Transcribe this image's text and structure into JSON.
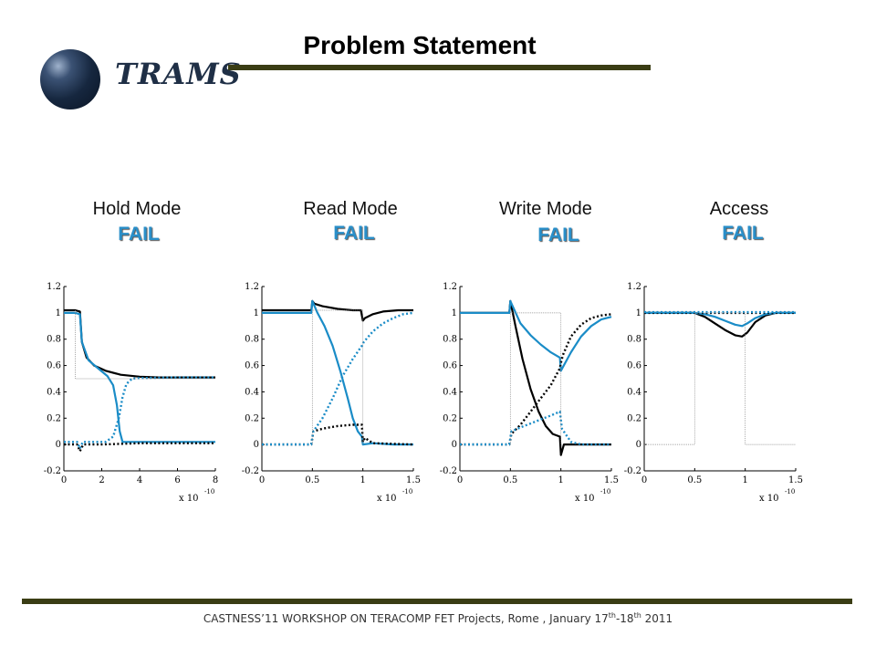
{
  "header": {
    "logo_text": "TRAMS",
    "title": "Problem Statement"
  },
  "modes": [
    {
      "label": "Hold Mode",
      "status": "FAIL"
    },
    {
      "label": "Read Mode",
      "status": "FAIL"
    },
    {
      "label": "Write Mode",
      "status": "FAIL"
    },
    {
      "label": "Access",
      "status": "FAIL"
    }
  ],
  "footer": {
    "text_main": "CASTNESS’11 WORKSHOP ON TERACOMP FET Projects, Rome , January 17",
    "sup1": "th",
    "text_mid": "-18",
    "sup2": "th",
    "text_end": " 2011"
  },
  "colors": {
    "black_series": "#000000",
    "blue_series": "#1a8cc7",
    "accent_line": "#3a3d14"
  },
  "chart_data": [
    {
      "type": "line",
      "title": "Hold Mode",
      "xlim": [
        0,
        8
      ],
      "ylim": [
        -0.2,
        1.2
      ],
      "xticks": [
        "0",
        "2",
        "4",
        "6",
        "8"
      ],
      "yticks": [
        "-0.2",
        "0",
        "0.2",
        "0.4",
        "0.6",
        "0.8",
        "1",
        "1.2"
      ],
      "x_multiplier": "x 10",
      "x_multiplier_exp": "-10",
      "series": [
        {
          "color": "#000000",
          "style": "solid",
          "x": [
            0,
            0.6,
            0.85,
            0.95,
            1.2,
            1.6,
            2.2,
            3,
            4,
            5,
            6,
            7,
            8
          ],
          "y": [
            1.02,
            1.02,
            1.01,
            0.78,
            0.66,
            0.6,
            0.56,
            0.53,
            0.515,
            0.51,
            0.51,
            0.51,
            0.51
          ]
        },
        {
          "color": "#1a8cc7",
          "style": "solid",
          "x": [
            0,
            0.6,
            0.85,
            0.95,
            1.3,
            1.8,
            2.3,
            2.6,
            2.8,
            2.95,
            3.1,
            4,
            5,
            6,
            8
          ],
          "y": [
            1.0,
            1.0,
            0.99,
            0.78,
            0.64,
            0.58,
            0.52,
            0.45,
            0.3,
            0.1,
            0.02,
            0.02,
            0.02,
            0.02,
            0.02
          ]
        },
        {
          "color": "#000000",
          "style": "dotted",
          "x": [
            0,
            0.7,
            0.85,
            0.95,
            1.05,
            2,
            4,
            6,
            8
          ],
          "y": [
            0.0,
            0.0,
            -0.05,
            -0.02,
            0.0,
            0.0,
            0.01,
            0.01,
            0.01
          ]
        },
        {
          "color": "#1a8cc7",
          "style": "dotted",
          "x": [
            0,
            0.7,
            0.85,
            1.0,
            2.2,
            2.6,
            2.9,
            3.1,
            3.3,
            3.6,
            4,
            6,
            8
          ],
          "y": [
            0.02,
            0.02,
            -0.03,
            0.02,
            0.02,
            0.06,
            0.2,
            0.36,
            0.46,
            0.5,
            0.505,
            0.51,
            0.51
          ]
        },
        {
          "color": "#888888",
          "style": "thin",
          "x": [
            0.6,
            0.6,
            8
          ],
          "y": [
            1.02,
            0.5,
            0.5
          ]
        }
      ]
    },
    {
      "type": "line",
      "title": "Read Mode",
      "xlim": [
        0,
        1.5
      ],
      "ylim": [
        -0.2,
        1.2
      ],
      "xticks": [
        "0",
        "0.5",
        "1",
        "1.5"
      ],
      "yticks": [
        "-0.2",
        "0",
        "0.2",
        "0.4",
        "0.6",
        "0.8",
        "1",
        "1.2"
      ],
      "x_multiplier": "x 10",
      "x_multiplier_exp": "-10",
      "series": [
        {
          "color": "#000000",
          "style": "solid",
          "x": [
            0,
            0.49,
            0.5,
            0.52,
            0.6,
            0.75,
            0.9,
            0.98,
            1.0,
            1.02,
            1.1,
            1.2,
            1.35,
            1.5
          ],
          "y": [
            1.02,
            1.02,
            1.09,
            1.07,
            1.05,
            1.03,
            1.02,
            1.02,
            0.94,
            0.96,
            0.99,
            1.01,
            1.02,
            1.02
          ]
        },
        {
          "color": "#1a8cc7",
          "style": "solid",
          "x": [
            0,
            0.49,
            0.5,
            0.55,
            0.62,
            0.7,
            0.78,
            0.85,
            0.9,
            0.95,
            0.99,
            1.0,
            1.1,
            1.3,
            1.5
          ],
          "y": [
            1.0,
            1.0,
            1.09,
            1.0,
            0.9,
            0.75,
            0.55,
            0.35,
            0.2,
            0.1,
            0.06,
            0.0,
            0.01,
            0.0,
            0.0
          ]
        },
        {
          "color": "#000000",
          "style": "dotted",
          "x": [
            0,
            0.49,
            0.51,
            0.6,
            0.75,
            0.9,
            0.99,
            1.0,
            1.02,
            1.1,
            1.5
          ],
          "y": [
            0.0,
            0.0,
            0.1,
            0.12,
            0.14,
            0.15,
            0.15,
            0.02,
            0.05,
            0.01,
            0.0
          ]
        },
        {
          "color": "#1a8cc7",
          "style": "dotted",
          "x": [
            0,
            0.49,
            0.51,
            0.6,
            0.7,
            0.8,
            0.9,
            0.99,
            1.01,
            1.1,
            1.2,
            1.3,
            1.4,
            1.5
          ],
          "y": [
            0.0,
            0.0,
            0.1,
            0.2,
            0.35,
            0.52,
            0.65,
            0.75,
            0.78,
            0.86,
            0.92,
            0.96,
            0.99,
            1.0
          ]
        },
        {
          "color": "#888888",
          "style": "thin",
          "x": [
            0.5,
            0.5,
            1.0,
            1.0
          ],
          "y": [
            0.0,
            1.02,
            1.02,
            0.0
          ]
        }
      ]
    },
    {
      "type": "line",
      "title": "Write Mode",
      "xlim": [
        0,
        1.5
      ],
      "ylim": [
        -0.2,
        1.2
      ],
      "xticks": [
        "0",
        "0.5",
        "1",
        "1.5"
      ],
      "yticks": [
        "-0.2",
        "0",
        "0.2",
        "0.4",
        "0.6",
        "0.8",
        "1",
        "1.2"
      ],
      "x_multiplier": "x 10",
      "x_multiplier_exp": "-10",
      "series": [
        {
          "color": "#000000",
          "style": "solid",
          "x": [
            0,
            0.49,
            0.5,
            0.55,
            0.62,
            0.7,
            0.78,
            0.85,
            0.92,
            0.99,
            1.0,
            1.03,
            1.1,
            1.3,
            1.5
          ],
          "y": [
            1.0,
            1.0,
            1.09,
            0.9,
            0.65,
            0.42,
            0.25,
            0.14,
            0.08,
            0.06,
            -0.08,
            0.0,
            0.0,
            0.0,
            0.0
          ]
        },
        {
          "color": "#1a8cc7",
          "style": "solid",
          "x": [
            0,
            0.49,
            0.5,
            0.6,
            0.7,
            0.8,
            0.9,
            0.99,
            1.0,
            1.1,
            1.2,
            1.3,
            1.4,
            1.5
          ],
          "y": [
            1.0,
            1.0,
            1.09,
            0.92,
            0.83,
            0.76,
            0.7,
            0.66,
            0.56,
            0.7,
            0.82,
            0.9,
            0.95,
            0.97
          ]
        },
        {
          "color": "#000000",
          "style": "dotted",
          "x": [
            0,
            0.49,
            0.51,
            0.6,
            0.7,
            0.8,
            0.9,
            0.99,
            1.0,
            1.02,
            1.1,
            1.2,
            1.3,
            1.4,
            1.5
          ],
          "y": [
            0.0,
            0.0,
            0.08,
            0.15,
            0.25,
            0.35,
            0.45,
            0.58,
            0.62,
            0.68,
            0.82,
            0.91,
            0.96,
            0.98,
            0.99
          ]
        },
        {
          "color": "#1a8cc7",
          "style": "dotted",
          "x": [
            0,
            0.49,
            0.51,
            0.6,
            0.7,
            0.8,
            0.9,
            0.99,
            1.01,
            1.1,
            1.2,
            1.5
          ],
          "y": [
            0.0,
            0.0,
            0.1,
            0.13,
            0.16,
            0.19,
            0.22,
            0.25,
            0.12,
            0.02,
            0.0,
            0.0
          ]
        },
        {
          "color": "#888888",
          "style": "thin",
          "x": [
            0.5,
            0.5,
            1.0,
            1.0
          ],
          "y": [
            0.0,
            1.0,
            1.0,
            0.0
          ]
        }
      ]
    },
    {
      "type": "line",
      "title": "Access",
      "xlim": [
        0,
        1.5
      ],
      "ylim": [
        -0.2,
        1.2
      ],
      "xticks": [
        "0",
        "0.5",
        "1",
        "1.5"
      ],
      "yticks": [
        "-0.2",
        "0",
        "0.2",
        "0.4",
        "0.6",
        "0.8",
        "1",
        "1.2"
      ],
      "x_multiplier": "x 10",
      "x_multiplier_exp": "-10",
      "series": [
        {
          "color": "#000000",
          "style": "solid",
          "x": [
            0,
            0.5,
            0.6,
            0.7,
            0.8,
            0.9,
            0.97,
            1.02,
            1.1,
            1.2,
            1.3,
            1.5
          ],
          "y": [
            1.0,
            1.0,
            0.97,
            0.92,
            0.87,
            0.83,
            0.82,
            0.85,
            0.93,
            0.98,
            1.0,
            1.0
          ]
        },
        {
          "color": "#1a8cc7",
          "style": "solid",
          "x": [
            0,
            0.5,
            0.6,
            0.7,
            0.8,
            0.9,
            0.97,
            1.02,
            1.1,
            1.2,
            1.3,
            1.5
          ],
          "y": [
            1.0,
            1.0,
            0.99,
            0.97,
            0.94,
            0.91,
            0.9,
            0.92,
            0.96,
            0.99,
            1.0,
            1.0
          ]
        },
        {
          "color": "#000000",
          "style": "dotted",
          "x": [
            0,
            1.5
          ],
          "y": [
            1.0,
            1.0
          ]
        },
        {
          "color": "#1a8cc7",
          "style": "dotted",
          "x": [
            0,
            1.5
          ],
          "y": [
            1.005,
            1.005
          ]
        },
        {
          "color": "#888888",
          "style": "thin",
          "x": [
            0,
            0.5,
            0.5,
            1.0,
            1.0,
            1.5
          ],
          "y": [
            0.0,
            0.0,
            1.0,
            1.0,
            0.0,
            0.0
          ]
        }
      ]
    }
  ]
}
